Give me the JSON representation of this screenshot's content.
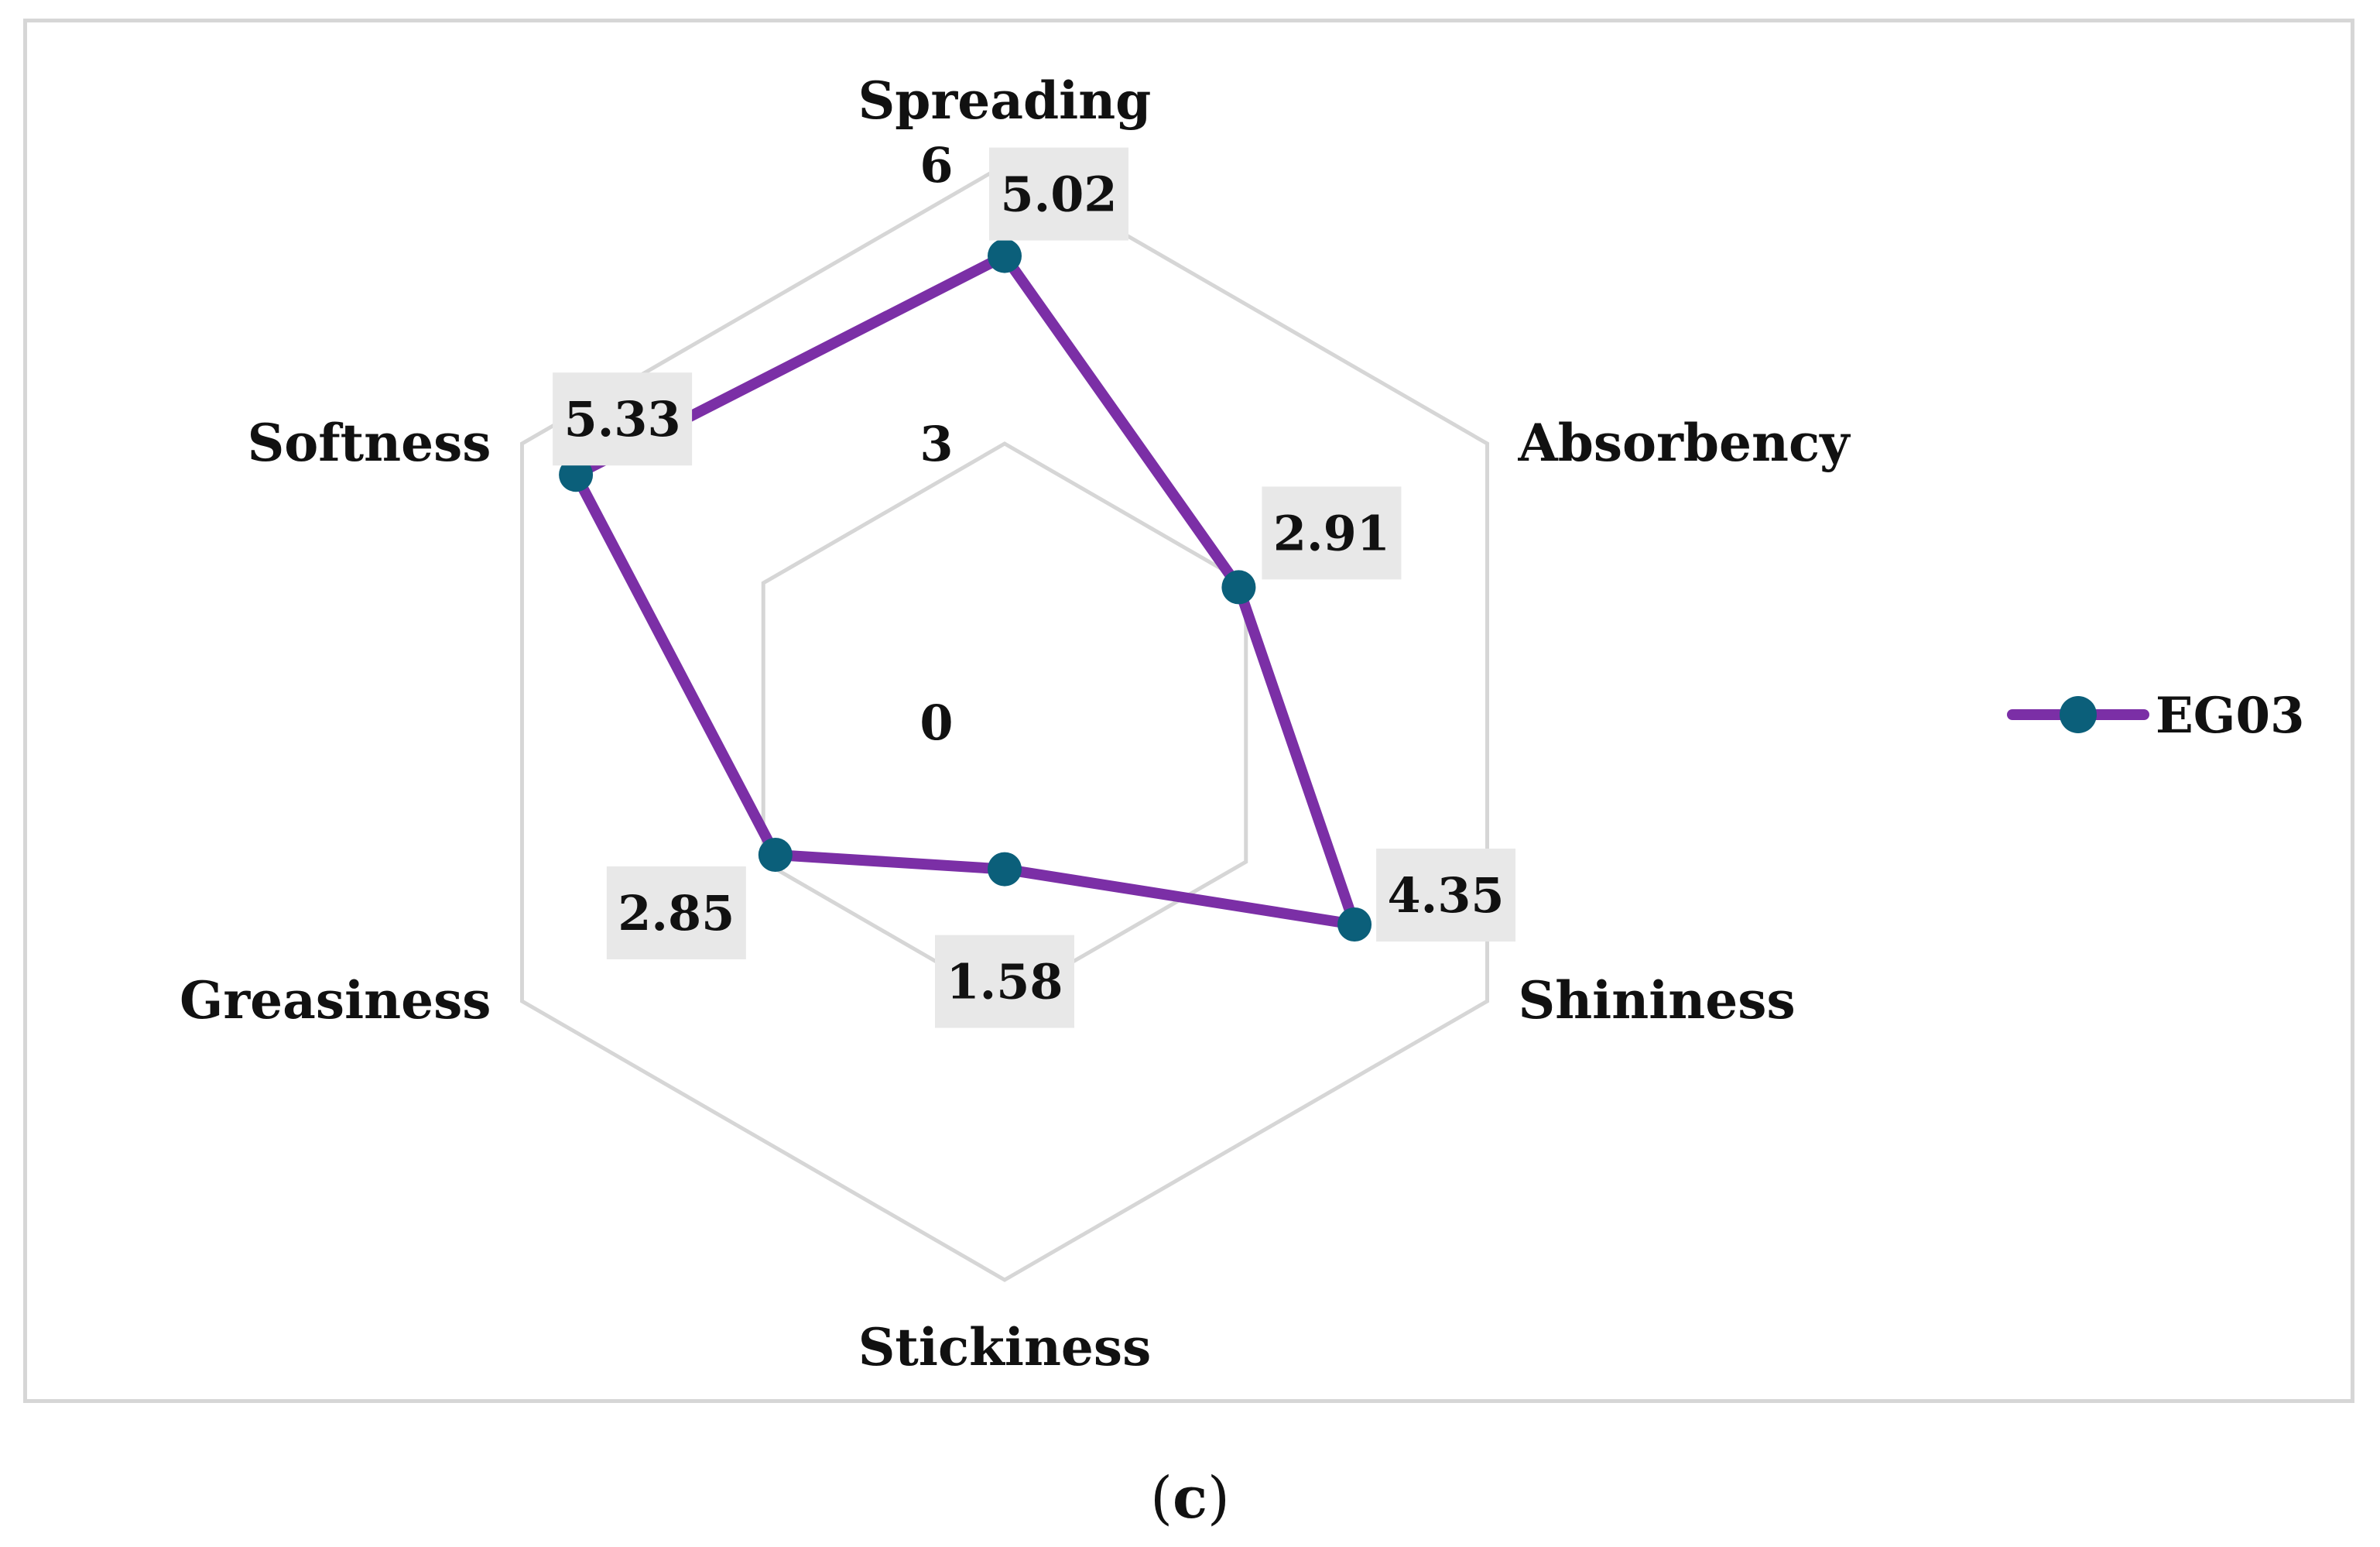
{
  "caption": {
    "prefix": "(",
    "letter": "c",
    "suffix": ")"
  },
  "chart_data": {
    "type": "radar",
    "axes": [
      "Spreading",
      "Absorbency",
      "Shininess",
      "Stickiness",
      "Greasiness",
      "Softness"
    ],
    "rlim": [
      0,
      6
    ],
    "ticks": [
      {
        "value": 0,
        "label": "0"
      },
      {
        "value": 3,
        "label": "3"
      },
      {
        "value": 6,
        "label": "6"
      }
    ],
    "series": [
      {
        "name": "EG03",
        "values": [
          5.02,
          2.91,
          4.35,
          1.58,
          2.85,
          5.33
        ],
        "labels": [
          "5.02",
          "2.91",
          "4.35",
          "1.58",
          "2.85",
          "5.33"
        ]
      }
    ],
    "legend_position": "right",
    "colors": {
      "line": "#7b2fa6",
      "marker": "#0b5f7a",
      "grid": "#d6d6d6",
      "label_box": "#e8e8e8"
    },
    "grid": true
  }
}
